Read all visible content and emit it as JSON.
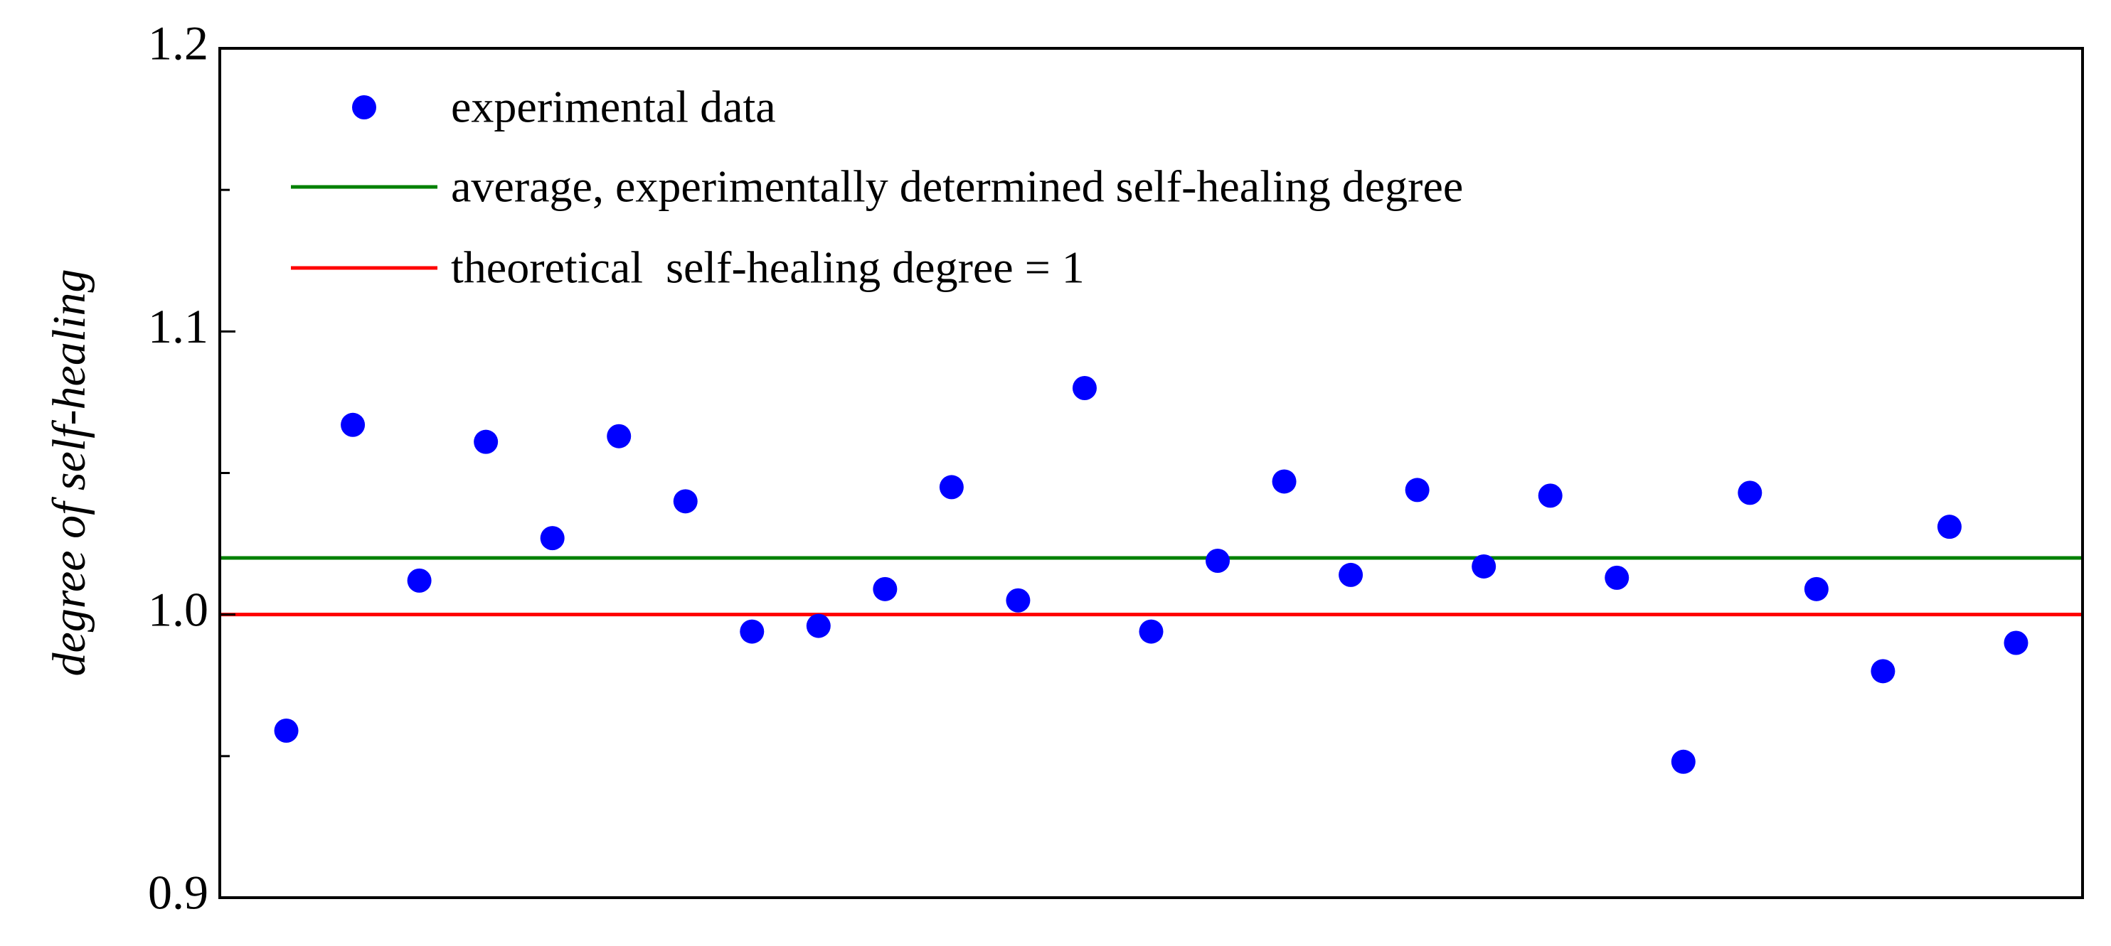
{
  "chart_data": {
    "type": "scatter",
    "y_label": "degree of self-healing",
    "x": [
      1,
      2,
      3,
      4,
      5,
      6,
      7,
      8,
      9,
      10,
      11,
      12,
      13,
      14,
      15,
      16,
      17,
      18,
      19,
      20,
      21,
      22,
      23,
      24,
      25,
      26,
      27
    ],
    "series": [
      {
        "name": "experimental data",
        "color": "#0000ff",
        "values": [
          0.959,
          1.067,
          1.012,
          1.061,
          1.027,
          1.063,
          1.04,
          0.994,
          0.996,
          1.009,
          1.045,
          1.005,
          1.08,
          0.994,
          1.019,
          1.047,
          1.014,
          1.044,
          1.017,
          1.042,
          1.013,
          0.948,
          1.043,
          1.009,
          0.98,
          1.031,
          0.99
        ]
      }
    ],
    "reference_lines": [
      {
        "name": "average, experimentally determined self-healing degree",
        "color": "#008000",
        "value": 1.02
      },
      {
        "name": "theoretical  self-healing degree = 1",
        "color": "#ff0000",
        "value": 1
      }
    ],
    "xlim": [
      0,
      28
    ],
    "ylim": [
      0.9,
      1.2
    ],
    "yticks": [
      0.9,
      {
        "value": 1,
        "label": "1.0"
      },
      1.1,
      1.2
    ],
    "yminor_ticks": [
      0.95,
      1.05,
      1.15
    ]
  }
}
